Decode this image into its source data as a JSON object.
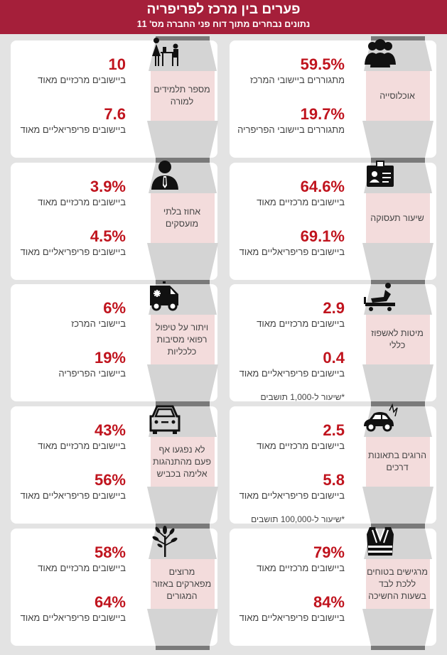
{
  "header": {
    "title": "פערים בין מרכז לפריפריה",
    "subtitle": "נתונים נבחרים מתוך דוח פני החברה מס' 11"
  },
  "colors": {
    "header": "#a51f3a",
    "value": "#c0141e",
    "funnel": "#d4d4d4",
    "topic_bg": "#f3dcdc"
  },
  "cards": [
    {
      "topic": "אוכלוסייה",
      "icon": "people-group-icon",
      "value1": "59.5%",
      "label1": "מתגוררים ביישובי המרכז",
      "value2": "19.7%",
      "label2": "מתגוררים ביישובי הפריפריה"
    },
    {
      "topic": "מספר תלמידים למורה",
      "icon": "teacher-student-icon",
      "value1": "10",
      "label1": "ביישובים מרכזיים מאוד",
      "value2": "7.6",
      "label2": "ביישובים פריפריאליים מאוד"
    },
    {
      "topic": "שיעור תעסוקה",
      "icon": "id-badge-icon",
      "value1": "64.6%",
      "label1": "ביישובים מרכזיים מאוד",
      "value2": "69.1%",
      "label2": "ביישובים פריפריאליים מאוד"
    },
    {
      "topic": "אחוז בלתי מועסקים",
      "icon": "person-tie-icon",
      "value1": "3.9%",
      "label1": "ביישובים מרכזיים מאוד",
      "value2": "4.5%",
      "label2": "ביישובים פריפריאליים מאוד"
    },
    {
      "topic": "מיטות לאשפוז כללי",
      "icon": "hospital-bed-icon",
      "value1": "2.9",
      "label1": "ביישובים מרכזיים מאוד",
      "value2": "0.4",
      "label2": "ביישובים פריפריאליים מאוד",
      "note": "*שיעור ל-1,000 תושבים"
    },
    {
      "topic": "ויתור על טיפול רפואי מסיבות כלכליות",
      "icon": "ambulance-icon",
      "value1": "6%",
      "label1": "ביישובי המרכז",
      "value2": "19%",
      "label2": "ביישובי הפריפריה"
    },
    {
      "topic": "הרוגים בתאונות דרכים",
      "icon": "car-crash-icon",
      "value1": "2.5",
      "label1": "ביישובים מרכזיים מאוד",
      "value2": "5.8",
      "label2": "ביישובים פריפריאליים מאוד",
      "note": "*שיעור ל-100,000 תושבים"
    },
    {
      "topic": "לא נפגעו אף פעם מהתנהגות אלימה בכביש",
      "icon": "car-icon",
      "value1": "43%",
      "label1": "ביישובים מרכזיים מאוד",
      "value2": "56%",
      "label2": "ביישובים פריפריאליים מאוד"
    },
    {
      "topic": "מרגישים בטוחים ללכת לבד בשעות החשיכה",
      "icon": "safety-vest-icon",
      "value1": "79%",
      "label1": "ביישובים מרכזיים מאוד",
      "value2": "84%",
      "label2": "ביישובים פריפריאליים מאוד"
    },
    {
      "topic": "מרוצים מפארקים באזור המגורים",
      "icon": "tree-icon",
      "value1": "58%",
      "label1": "ביישובים מרכזיים מאוד",
      "value2": "64%",
      "label2": "ביישובים פריפריאליים מאוד"
    }
  ]
}
